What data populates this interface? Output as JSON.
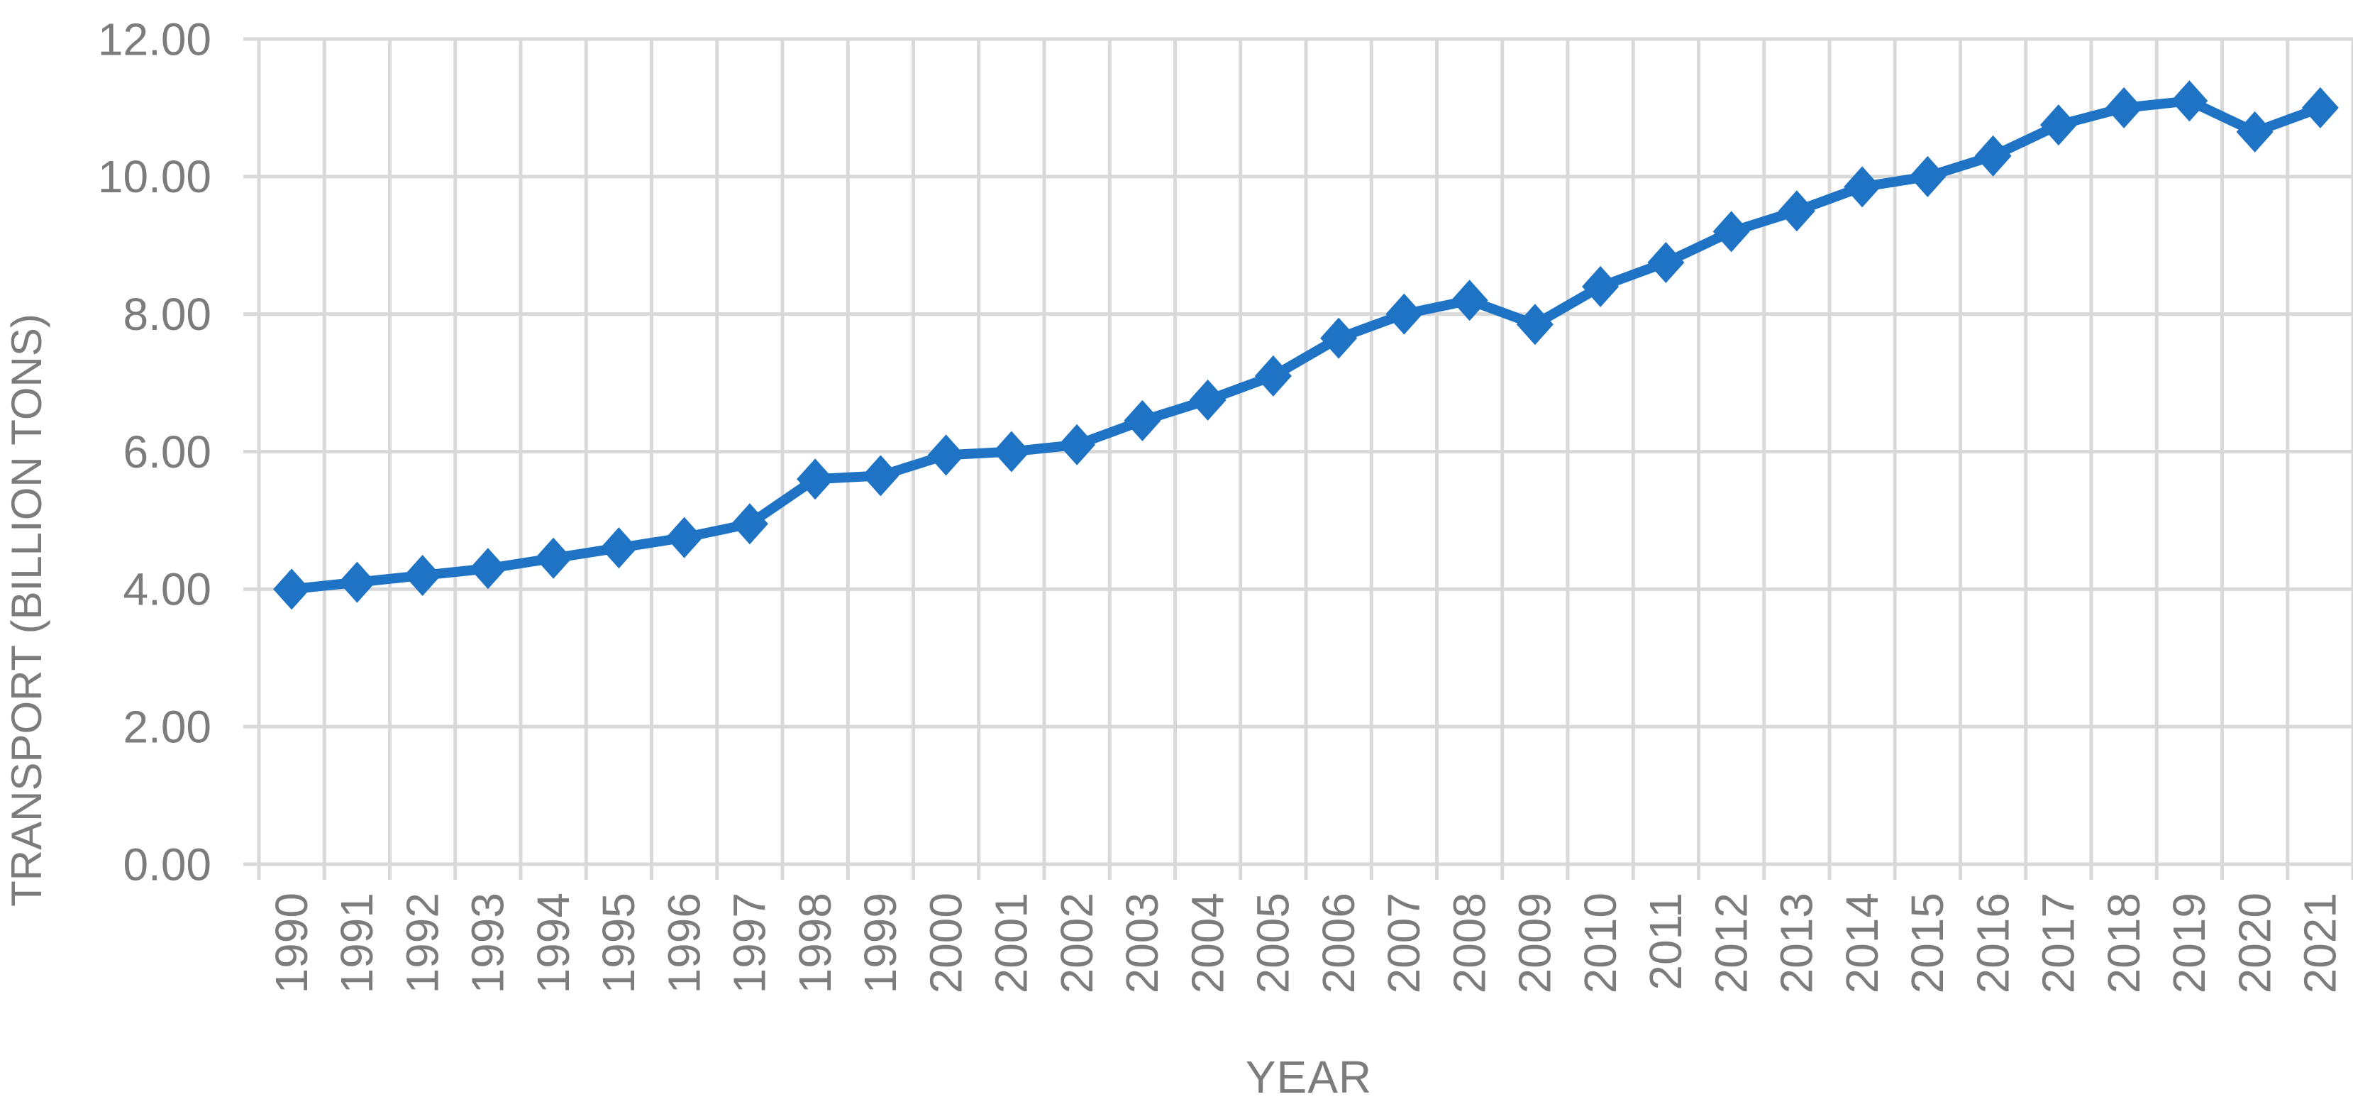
{
  "chart_data": {
    "type": "line",
    "title": "",
    "xlabel": "YEAR",
    "ylabel": "TRANSPORT (BILLION TONS)",
    "x": [
      "1990",
      "1991",
      "1992",
      "1993",
      "1994",
      "1995",
      "1996",
      "1997",
      "1998",
      "1999",
      "2000",
      "2001",
      "2002",
      "2003",
      "2004",
      "2005",
      "2006",
      "2007",
      "2008",
      "2009",
      "2010",
      "2011",
      "2012",
      "2013",
      "2014",
      "2015",
      "2016",
      "2017",
      "2018",
      "2019",
      "2020",
      "2021"
    ],
    "series": [
      {
        "name": "Transport (billion tons)",
        "values": [
          4.0,
          4.1,
          4.2,
          4.3,
          4.45,
          4.6,
          4.75,
          4.95,
          5.6,
          5.65,
          5.95,
          6.0,
          6.1,
          6.45,
          6.75,
          7.1,
          7.65,
          8.0,
          8.2,
          7.85,
          8.4,
          8.75,
          9.2,
          9.5,
          9.85,
          10.0,
          10.3,
          10.75,
          11.0,
          11.1,
          10.65,
          11.0
        ]
      }
    ],
    "ylim": [
      0,
      12
    ],
    "ytick_step": 2,
    "ytick_labels": [
      "0.00",
      "2.00",
      "4.00",
      "6.00",
      "8.00",
      "10.00",
      "12.00"
    ],
    "grid": true,
    "legend_position": "none",
    "marker": "diamond",
    "colors": {
      "series": "#1F73C4",
      "grid": "#D9D9D9",
      "text": "#7C7C7C",
      "background": "#FFFFFF"
    }
  }
}
